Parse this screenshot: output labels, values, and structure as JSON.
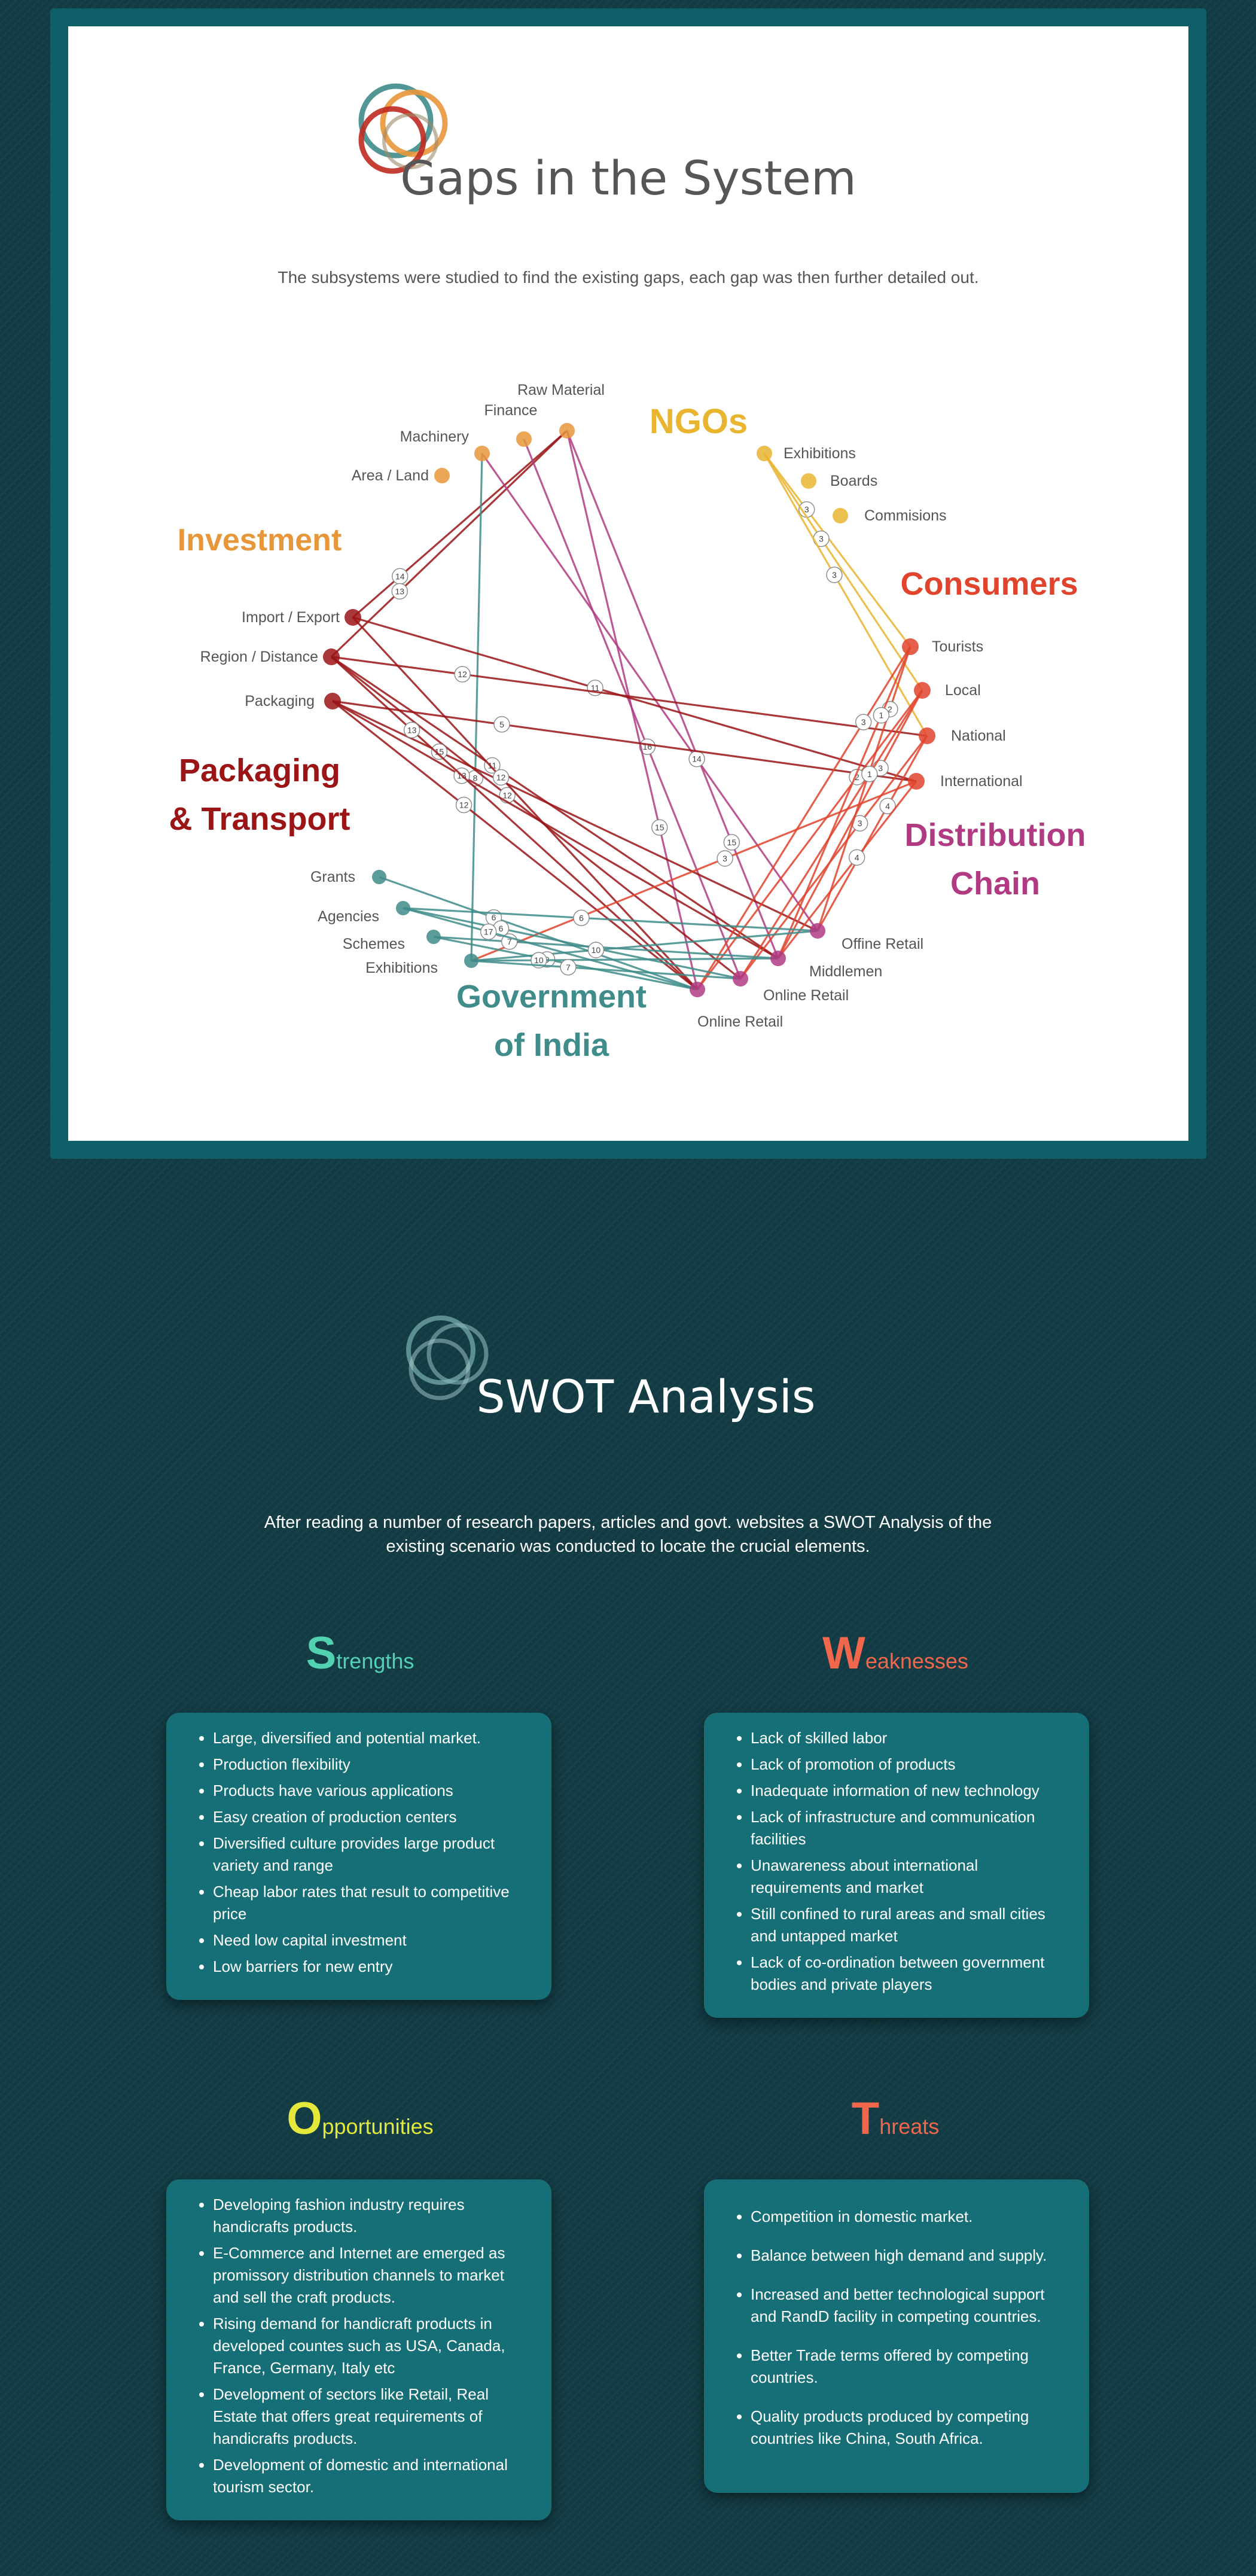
{
  "gaps": {
    "title": "Gaps in the System",
    "subtitle": "The subsystems were studied to find the existing gaps, each gap was then further detailed out.",
    "groups": [
      {
        "id": "investment",
        "label": "Investment",
        "color": "#e8963a"
      },
      {
        "id": "ngos",
        "label": "NGOs",
        "color": "#e9b531"
      },
      {
        "id": "consumers",
        "label": "Consumers",
        "color": "#e0442d"
      },
      {
        "id": "packaging",
        "label": "Packaging & Transport",
        "color": "#9b1416"
      },
      {
        "id": "distribution",
        "label": "Distribution Chain",
        "color": "#b03b83"
      },
      {
        "id": "government",
        "label": "Government of India",
        "color": "#3f8c8a"
      }
    ],
    "nodes": [
      {
        "id": "raw",
        "label": "Raw Material",
        "group": "investment"
      },
      {
        "id": "finance",
        "label": "Finance",
        "group": "investment"
      },
      {
        "id": "machinery",
        "label": "Machinery",
        "group": "investment"
      },
      {
        "id": "area",
        "label": "Area / Land",
        "group": "investment"
      },
      {
        "id": "exh_ngo",
        "label": "Exhibitions",
        "group": "ngos"
      },
      {
        "id": "boards",
        "label": "Boards",
        "group": "ngos"
      },
      {
        "id": "commissions",
        "label": "Commisions",
        "group": "ngos"
      },
      {
        "id": "tourists",
        "label": "Tourists",
        "group": "consumers"
      },
      {
        "id": "local",
        "label": "Local",
        "group": "consumers"
      },
      {
        "id": "national",
        "label": "National",
        "group": "consumers"
      },
      {
        "id": "international",
        "label": "International",
        "group": "consumers"
      },
      {
        "id": "impexp",
        "label": "Import / Export",
        "group": "packaging"
      },
      {
        "id": "region",
        "label": "Region / Distance",
        "group": "packaging"
      },
      {
        "id": "packaging",
        "label": "Packaging",
        "group": "packaging"
      },
      {
        "id": "offline",
        "label": "Offine Retail",
        "group": "distribution"
      },
      {
        "id": "middlemen",
        "label": "Middlemen",
        "group": "distribution"
      },
      {
        "id": "online1",
        "label": "Online Retail",
        "group": "distribution"
      },
      {
        "id": "online2",
        "label": "Online Retail",
        "group": "distribution"
      },
      {
        "id": "grants",
        "label": "Grants",
        "group": "government"
      },
      {
        "id": "agencies",
        "label": "Agencies",
        "group": "government"
      },
      {
        "id": "schemes",
        "label": "Schemes",
        "group": "government"
      },
      {
        "id": "exh_gov",
        "label": "Exhibitions",
        "group": "government"
      }
    ],
    "links": [
      {
        "from": "impexp",
        "to": "raw",
        "label": "14"
      },
      {
        "from": "region",
        "to": "raw",
        "label": "13"
      },
      {
        "from": "exh_gov",
        "to": "machinery",
        "label": "8"
      },
      {
        "from": "online1",
        "to": "finance",
        "label": "16"
      },
      {
        "from": "middlemen",
        "to": "raw",
        "label": "15"
      },
      {
        "from": "online2",
        "to": "raw",
        "label": "15"
      },
      {
        "from": "offline",
        "to": "machinery",
        "label": "14"
      },
      {
        "from": "impexp",
        "to": "international",
        "label": "11"
      },
      {
        "from": "region",
        "to": "national",
        "label": "12"
      },
      {
        "from": "packaging",
        "to": "international",
        "label": "5"
      },
      {
        "from": "region",
        "to": "middlemen",
        "label": "11"
      },
      {
        "from": "region",
        "to": "online1",
        "label": "12"
      },
      {
        "from": "packaging",
        "to": "offline",
        "label": "15"
      },
      {
        "from": "packaging",
        "to": "middlemen",
        "label": "13"
      },
      {
        "from": "packaging",
        "to": "online2",
        "label": "12"
      },
      {
        "from": "impexp",
        "to": "online2",
        "label": "12"
      },
      {
        "from": "region",
        "to": "online2",
        "label": "13"
      },
      {
        "from": "exh_ngo",
        "to": "tourists",
        "label": "3"
      },
      {
        "from": "exh_ngo",
        "to": "local",
        "label": "3"
      },
      {
        "from": "exh_ngo",
        "to": "national",
        "label": "3"
      },
      {
        "from": "tourists",
        "to": "online2",
        "label": "3"
      },
      {
        "from": "local",
        "to": "middlemen",
        "label": "3"
      },
      {
        "from": "national",
        "to": "online1",
        "label": "3"
      },
      {
        "from": "international",
        "to": "exh_gov",
        "label": "3"
      },
      {
        "from": "tourists",
        "to": "offline",
        "label": "2"
      },
      {
        "from": "local",
        "to": "online2",
        "label": "2"
      },
      {
        "from": "national",
        "to": "offline",
        "label": "4"
      },
      {
        "from": "international",
        "to": "middlemen",
        "label": "4"
      },
      {
        "from": "tourists",
        "to": "middlemen",
        "label": "1"
      },
      {
        "from": "local",
        "to": "online1",
        "label": "1"
      },
      {
        "from": "grants",
        "to": "online2",
        "label": "6"
      },
      {
        "from": "agencies",
        "to": "offline",
        "label": "6"
      },
      {
        "from": "schemes",
        "to": "middlemen",
        "label": "7"
      },
      {
        "from": "agencies",
        "to": "online1",
        "label": "6"
      },
      {
        "from": "exh_gov",
        "to": "offline",
        "label": "10"
      },
      {
        "from": "schemes",
        "to": "online2",
        "label": "9"
      },
      {
        "from": "exh_gov",
        "to": "middlemen",
        "label": "10"
      },
      {
        "from": "agencies",
        "to": "online2",
        "label": "17"
      },
      {
        "from": "exh_gov",
        "to": "online1",
        "label": "7"
      }
    ]
  },
  "swot": {
    "title": "SWOT Analysis",
    "subtitle_lines": [
      "After reading a number of research papers, articles and govt. websites a SWOT Analysis of the",
      "existing scenario was conducted to locate the crucial elements."
    ],
    "strengths": {
      "initial": "S",
      "rest": "trengths",
      "color": "#52d1b0",
      "items": [
        "Large, diversified and potential market.",
        "Production flexibility",
        "Products have various applications",
        "Easy creation of production centers",
        "Diversified culture provides large product variety and range",
        "Cheap labor rates that result to competitive price",
        "Need low capital investment",
        "Low barriers for new entry"
      ]
    },
    "weaknesses": {
      "initial": "W",
      "rest": "eaknesses",
      "color": "#f0674c",
      "items": [
        "Lack of skilled labor",
        "Lack of promotion of products",
        "Inadequate information of new technology",
        "Lack of infrastructure and communication facilities",
        "Unawareness about international requirements and market",
        "Still confined to rural areas and small cities and untapped market",
        "Lack of co-ordination between government bodies and private players"
      ]
    },
    "opportunities": {
      "initial": "O",
      "rest": "pportunities",
      "color": "#e3e83a",
      "items": [
        "Developing fashion industry requires handicrafts products.",
        "E-Commerce and Internet are emerged as promissory distribution channels to market and sell the craft products.",
        "Rising demand for handicraft products in developed countes such as USA, Canada, France, Germany, Italy etc",
        "Development of sectors like Retail, Real Estate that offers great requirements of handicrafts products.",
        "Development of domestic and international tourism sector."
      ]
    },
    "threats": {
      "initial": "T",
      "rest": "hreats",
      "color": "#f0674c",
      "items": [
        "Competition in domestic market.",
        "Balance between high demand and supply.",
        "Increased and better technological support and RandD facility in competing countries.",
        "Better Trade terms offered by competing countries.",
        "Quality products produced by competing countries like China, South Africa."
      ]
    }
  }
}
